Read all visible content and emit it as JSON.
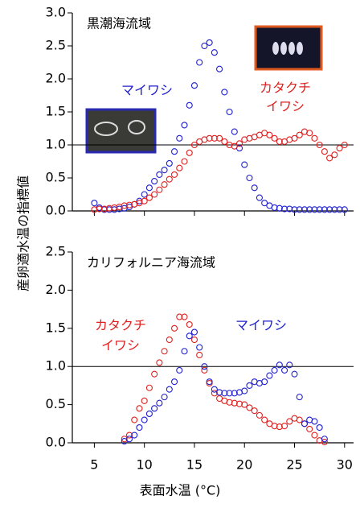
{
  "xlabel": "表面水温 (°C)",
  "ylabel": "産卵適水温の指標値",
  "chart_data": [
    {
      "type": "scatter",
      "title": "黒潮海流域",
      "xlim": [
        2.8,
        30.9
      ],
      "ylim": [
        0,
        3
      ],
      "yticks": [
        {
          "value": 0,
          "label": "0.0"
        },
        {
          "value": 0.5,
          "label": "0.5"
        },
        {
          "value": 1,
          "label": "1.0"
        },
        {
          "value": 1.5,
          "label": "1.5"
        },
        {
          "value": 2,
          "label": "2.0"
        },
        {
          "value": 2.5,
          "label": "2.5"
        },
        {
          "value": 3,
          "label": "3.0"
        }
      ],
      "xticks": [
        5,
        10,
        15,
        20,
        25,
        30
      ],
      "show_xtick_labels": false,
      "hline": 1,
      "series": [
        {
          "label_lines": [
            "マイワシ"
          ],
          "color": "#2020d0",
          "x": [
            5,
            5.5,
            6,
            6.5,
            7,
            7.5,
            8,
            8.5,
            9,
            9.5,
            10,
            10.5,
            11,
            11.5,
            12,
            12.5,
            13,
            13.5,
            14,
            14.5,
            15,
            15.5,
            16,
            16.5,
            17,
            17.5,
            18,
            18.5,
            19,
            19.5,
            20,
            20.5,
            21,
            21.5,
            22,
            22.5,
            23,
            23.5,
            24,
            24.5,
            25,
            25.5,
            26,
            26.5,
            27,
            27.5,
            28,
            28.5,
            29,
            29.5,
            30
          ],
          "values": [
            0.12,
            0.05,
            0.02,
            0.02,
            0.02,
            0.03,
            0.04,
            0.06,
            0.1,
            0.15,
            0.25,
            0.35,
            0.45,
            0.55,
            0.62,
            0.72,
            0.9,
            1.1,
            1.3,
            1.6,
            1.9,
            2.25,
            2.5,
            2.55,
            2.4,
            2.15,
            1.8,
            1.5,
            1.2,
            0.95,
            0.7,
            0.5,
            0.35,
            0.2,
            0.12,
            0.08,
            0.05,
            0.04,
            0.03,
            0.03,
            0.02,
            0.02,
            0.02,
            0.02,
            0.02,
            0.02,
            0.02,
            0.02,
            0.02,
            0.02,
            0.02
          ]
        },
        {
          "label_lines": [
            "カタクチ",
            "イワシ"
          ],
          "color": "#e02020",
          "x": [
            5,
            5.5,
            6,
            6.5,
            7,
            7.5,
            8,
            8.5,
            9,
            9.5,
            10,
            10.5,
            11,
            11.5,
            12,
            12.5,
            13,
            13.5,
            14,
            14.5,
            15,
            15.5,
            16,
            16.5,
            17,
            17.5,
            18,
            18.5,
            19,
            19.5,
            20,
            20.5,
            21,
            21.5,
            22,
            22.5,
            23,
            23.5,
            24,
            24.5,
            25,
            25.5,
            26,
            26.5,
            27,
            27.5,
            28,
            28.5,
            29,
            29.5,
            30
          ],
          "values": [
            0.02,
            0.03,
            0.03,
            0.04,
            0.05,
            0.06,
            0.08,
            0.09,
            0.1,
            0.12,
            0.15,
            0.2,
            0.25,
            0.32,
            0.4,
            0.48,
            0.55,
            0.65,
            0.75,
            0.88,
            1.0,
            1.05,
            1.08,
            1.1,
            1.1,
            1.1,
            1.05,
            1.0,
            0.98,
            1.02,
            1.08,
            1.1,
            1.12,
            1.15,
            1.18,
            1.15,
            1.1,
            1.05,
            1.05,
            1.08,
            1.1,
            1.15,
            1.2,
            1.18,
            1.1,
            1.0,
            0.9,
            0.8,
            0.85,
            0.95,
            1.0
          ]
        }
      ]
    },
    {
      "type": "scatter",
      "title": "カリフォルニア海流域",
      "xlim": [
        2.8,
        30.9
      ],
      "ylim": [
        0,
        2.5
      ],
      "yticks": [
        {
          "value": 0,
          "label": "0.0"
        },
        {
          "value": 0.5,
          "label": "0.5"
        },
        {
          "value": 1,
          "label": "1.0"
        },
        {
          "value": 1.5,
          "label": "1.5"
        },
        {
          "value": 2,
          "label": "2.0"
        },
        {
          "value": 2.5,
          "label": "2.5"
        }
      ],
      "xticks": [
        5,
        10,
        15,
        20,
        25,
        30
      ],
      "show_xtick_labels": true,
      "hline": 1,
      "series": [
        {
          "label_lines": [
            "カタクチ",
            "イワシ"
          ],
          "color": "#e02020",
          "x": [
            8,
            8.5,
            9,
            9.5,
            10,
            10.5,
            11,
            11.5,
            12,
            12.5,
            13,
            13.5,
            14,
            14.5,
            15,
            15.5,
            16,
            16.5,
            17,
            17.5,
            18,
            18.5,
            19,
            19.5,
            20,
            20.5,
            21,
            21.5,
            22,
            22.5,
            23,
            23.5,
            24,
            24.5,
            25,
            25.5,
            26,
            26.5,
            27,
            27.5,
            28
          ],
          "values": [
            0.05,
            0.1,
            0.3,
            0.45,
            0.55,
            0.72,
            0.9,
            1.05,
            1.2,
            1.35,
            1.5,
            1.65,
            1.65,
            1.55,
            1.35,
            1.15,
            0.95,
            0.78,
            0.65,
            0.58,
            0.55,
            0.53,
            0.52,
            0.51,
            0.5,
            0.46,
            0.42,
            0.36,
            0.3,
            0.25,
            0.22,
            0.21,
            0.22,
            0.28,
            0.32,
            0.3,
            0.25,
            0.18,
            0.1,
            0.03,
            0.01
          ]
        },
        {
          "label_lines": [
            "マイワシ"
          ],
          "color": "#2020d0",
          "x": [
            8,
            8.5,
            9,
            9.5,
            10,
            10.5,
            11,
            11.5,
            12,
            12.5,
            13,
            13.5,
            14,
            14.5,
            15,
            15.5,
            16,
            16.5,
            17,
            17.5,
            18,
            18.5,
            19,
            19.5,
            20,
            20.5,
            21,
            21.5,
            22,
            22.5,
            23,
            23.5,
            24,
            24.5,
            25,
            25.5,
            26,
            26.5,
            27,
            27.5,
            28
          ],
          "values": [
            0.02,
            0.05,
            0.1,
            0.2,
            0.3,
            0.38,
            0.45,
            0.52,
            0.6,
            0.7,
            0.8,
            0.95,
            1.2,
            1.4,
            1.45,
            1.25,
            1.0,
            0.8,
            0.7,
            0.66,
            0.65,
            0.65,
            0.65,
            0.66,
            0.68,
            0.75,
            0.8,
            0.78,
            0.8,
            0.88,
            0.95,
            1.02,
            0.95,
            1.02,
            0.9,
            0.6,
            0.25,
            0.3,
            0.28,
            0.2,
            0.05
          ]
        }
      ]
    }
  ]
}
